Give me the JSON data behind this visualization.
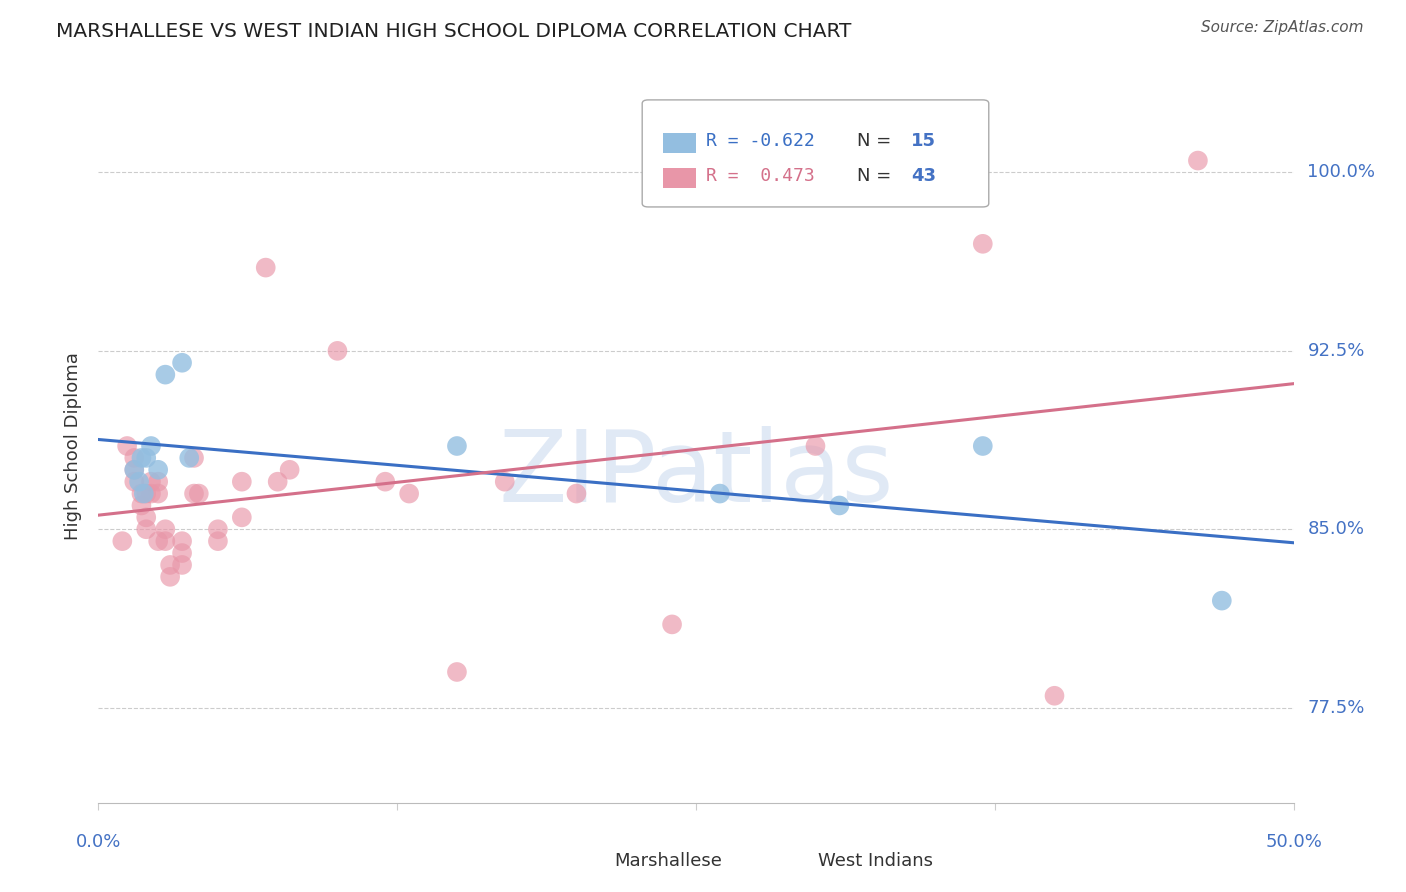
{
  "title": "MARSHALLESE VS WEST INDIAN HIGH SCHOOL DIPLOMA CORRELATION CHART",
  "source": "Source: ZipAtlas.com",
  "ylabel": "High School Diploma",
  "ytick_labels": [
    "77.5%",
    "85.0%",
    "92.5%",
    "100.0%"
  ],
  "ytick_values": [
    77.5,
    85.0,
    92.5,
    100.0
  ],
  "xlim": [
    0.0,
    50.0
  ],
  "ylim": [
    73.5,
    103.5
  ],
  "legend_blue_r": "-0.622",
  "legend_blue_n": "15",
  "legend_pink_r": "0.473",
  "legend_pink_n": "43",
  "blue_scatter_color": "#93BEE0",
  "pink_scatter_color": "#E896A8",
  "blue_line_color": "#3A6FC4",
  "pink_line_color": "#D4708A",
  "background_color": "#ffffff",
  "grid_color": "#cccccc",
  "marshallese_x": [
    1.5,
    1.8,
    2.5,
    2.2,
    2.0,
    1.7,
    1.9,
    2.8,
    3.5,
    3.8,
    15.0,
    26.0,
    31.0,
    37.0,
    47.0
  ],
  "marshallese_y": [
    87.5,
    88.0,
    87.5,
    88.5,
    88.0,
    87.0,
    86.5,
    91.5,
    92.0,
    88.0,
    88.5,
    86.5,
    86.0,
    88.5,
    82.0
  ],
  "westindian_x": [
    1.0,
    1.2,
    1.5,
    1.5,
    1.5,
    1.8,
    1.8,
    2.0,
    2.0,
    2.0,
    2.2,
    2.2,
    2.5,
    2.5,
    2.5,
    2.8,
    2.8,
    3.0,
    3.0,
    3.5,
    3.5,
    3.5,
    4.0,
    4.0,
    4.2,
    5.0,
    5.0,
    6.0,
    6.0,
    7.0,
    7.5,
    8.0,
    10.0,
    12.0,
    13.0,
    15.0,
    17.0,
    20.0,
    24.0,
    30.0,
    37.0,
    40.0,
    46.0
  ],
  "westindian_y": [
    84.5,
    88.5,
    88.0,
    87.5,
    87.0,
    86.5,
    86.0,
    86.5,
    85.5,
    85.0,
    87.0,
    86.5,
    87.0,
    86.5,
    84.5,
    85.0,
    84.5,
    83.0,
    83.5,
    84.0,
    84.5,
    83.5,
    86.5,
    88.0,
    86.5,
    84.5,
    85.0,
    87.0,
    85.5,
    96.0,
    87.0,
    87.5,
    92.5,
    87.0,
    86.5,
    79.0,
    87.0,
    86.5,
    81.0,
    88.5,
    97.0,
    78.0,
    100.5
  ]
}
